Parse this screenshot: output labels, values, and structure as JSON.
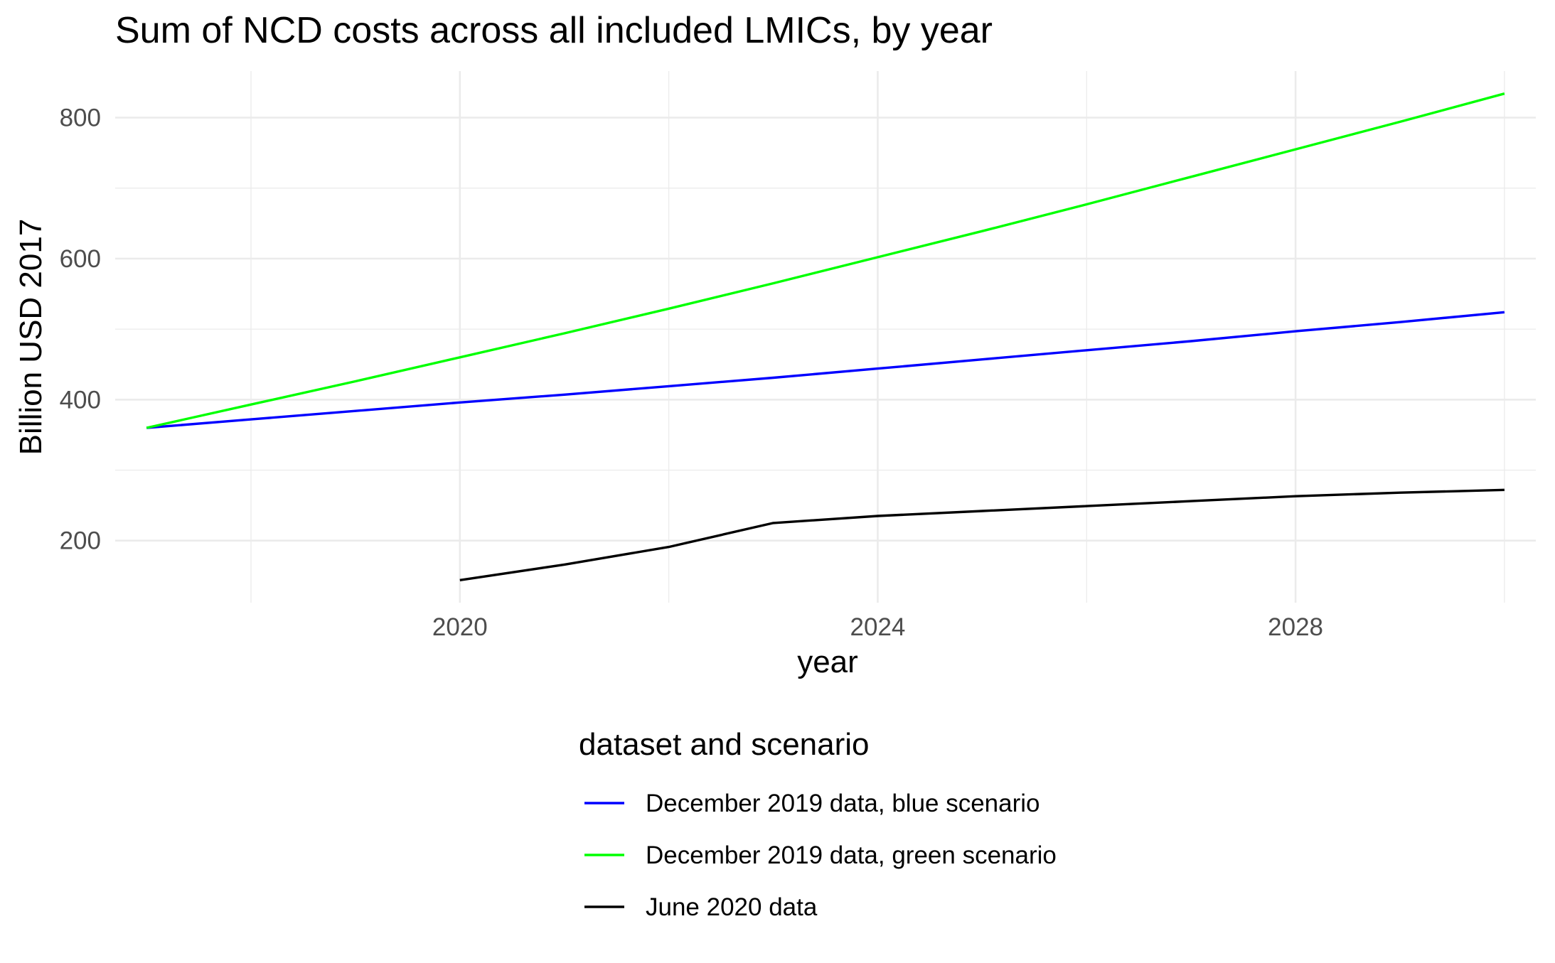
{
  "chart_data": {
    "type": "line",
    "title": "Sum of NCD costs across all included LMICs, by year",
    "xlabel": "year",
    "ylabel": "Billion USD 2017",
    "xlim": [
      2016.7,
      2030.3
    ],
    "ylim": [
      112,
      866
    ],
    "x_ticks": [
      2020,
      2024,
      2028
    ],
    "x_tick_labels": [
      "2020",
      "2024",
      "2028"
    ],
    "x_minor_ticks": [
      2018,
      2022,
      2026,
      2030
    ],
    "y_ticks": [
      200,
      400,
      600,
      800
    ],
    "y_tick_labels": [
      "200",
      "400",
      "600",
      "800"
    ],
    "y_minor_ticks": [
      300,
      500,
      700
    ],
    "grid": true,
    "legend_title": "dataset and scenario",
    "legend_position": "bottom",
    "series": [
      {
        "name": "December 2019 data, blue scenario",
        "color": "#0000ff",
        "x": [
          2017,
          2018,
          2019,
          2020,
          2021,
          2022,
          2023,
          2024,
          2025,
          2026,
          2027,
          2028,
          2029,
          2030
        ],
        "y": [
          360,
          372,
          384,
          396,
          407,
          419,
          431,
          444,
          457,
          470,
          483,
          497,
          510,
          524
        ]
      },
      {
        "name": "December 2019 data, green scenario",
        "color": "#00ff00",
        "x": [
          2017,
          2018,
          2019,
          2020,
          2021,
          2022,
          2023,
          2024,
          2025,
          2026,
          2027,
          2028,
          2029,
          2030
        ],
        "y": [
          360,
          393,
          426,
          460,
          494,
          529,
          565,
          602,
          639,
          677,
          716,
          755,
          794,
          834
        ]
      },
      {
        "name": "June 2020 data",
        "color": "#000000",
        "x": [
          2020,
          2021,
          2022,
          2023,
          2024,
          2025,
          2026,
          2027,
          2028,
          2029,
          2030
        ],
        "y": [
          144,
          166,
          191,
          225,
          235,
          242,
          249,
          256,
          263,
          268,
          272
        ]
      }
    ]
  }
}
